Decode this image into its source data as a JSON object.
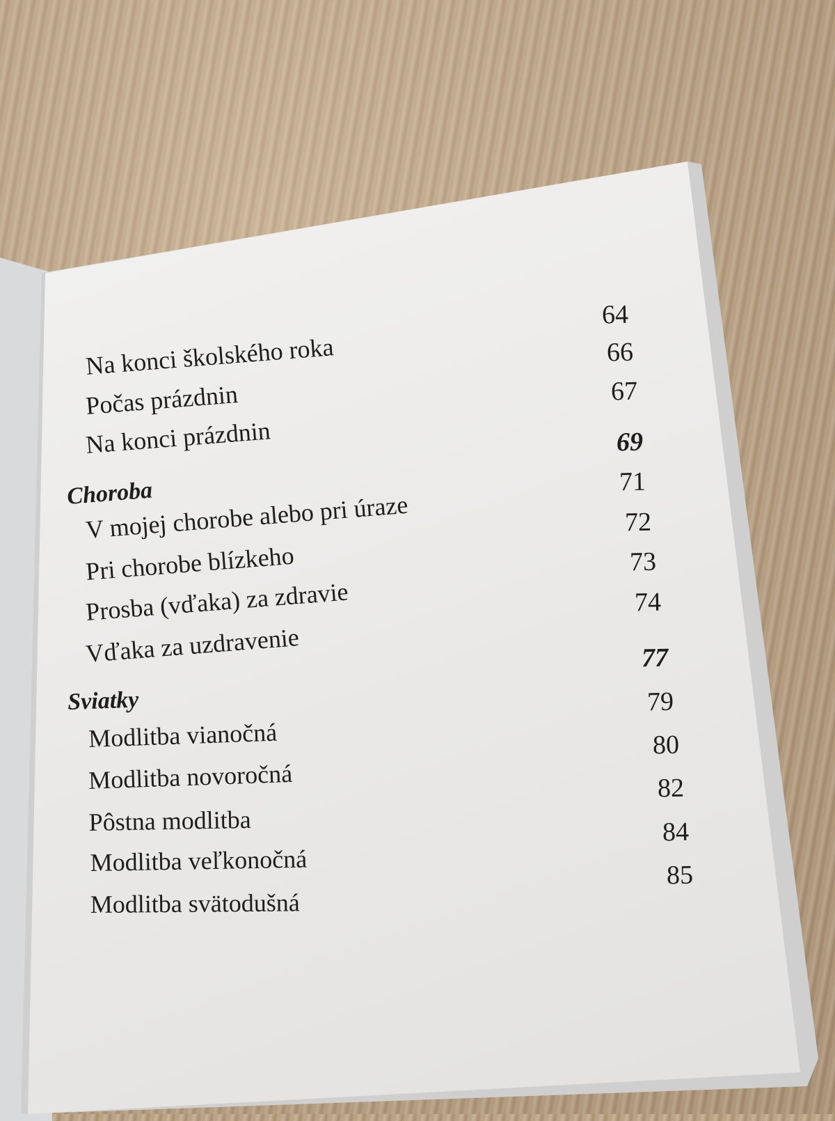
{
  "toc": {
    "entries": [
      {
        "title": "Na konci školského roka",
        "page": "64"
      },
      {
        "title": "Počas prázdnin",
        "page": "66"
      },
      {
        "title": "Na konci prázdnin",
        "page": "67"
      },
      {
        "section": "Choroba",
        "page": "69"
      },
      {
        "title": "V mojej chorobe alebo pri úraze",
        "page": "71"
      },
      {
        "title": "Pri chorobe blízkeho",
        "page": "72"
      },
      {
        "title": "Prosba (vďaka) za zdravie",
        "page": "73"
      },
      {
        "title": "Vďaka za uzdravenie",
        "page": "74"
      },
      {
        "section": "Sviatky",
        "page": "77"
      },
      {
        "title": "Modlitba vianočná",
        "page": "79"
      },
      {
        "title": "Modlitba novoročná",
        "page": "80"
      },
      {
        "title": "Pôstna modlitba",
        "page": "82"
      },
      {
        "title": "Modlitba veľkonočná",
        "page": "84"
      },
      {
        "title": "Modlitba svätodušná",
        "page": "85"
      }
    ]
  }
}
